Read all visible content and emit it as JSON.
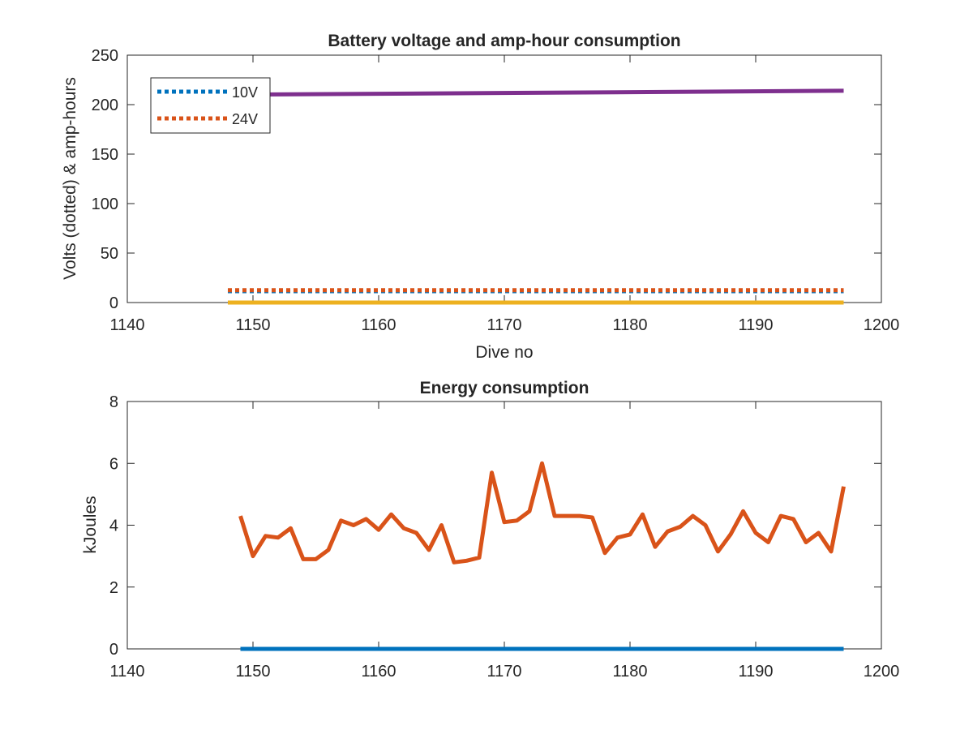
{
  "chart_data": [
    {
      "type": "line",
      "title": "Battery voltage and amp-hour consumption",
      "xlabel": "Dive no",
      "ylabel": "Volts (dotted) & amp-hours",
      "xlim": [
        1140,
        1200
      ],
      "ylim": [
        0,
        250
      ],
      "xticks": [
        1140,
        1150,
        1160,
        1170,
        1180,
        1190,
        1200
      ],
      "yticks": [
        0,
        50,
        100,
        150,
        200,
        250
      ],
      "legend": {
        "placement": "top-left",
        "entries": [
          "10V",
          "24V"
        ]
      },
      "series": [
        {
          "name": "10V",
          "color": "#0072BD",
          "style": "dotted",
          "x": [
            1148,
            1197
          ],
          "y": [
            11.5,
            11.5
          ]
        },
        {
          "name": "24V",
          "color": "#D95319",
          "style": "dotted",
          "x": [
            1148,
            1197
          ],
          "y": [
            12.5,
            12.5
          ]
        },
        {
          "color": "#EDB120",
          "style": "solid",
          "x": [
            1148,
            1197
          ],
          "y": [
            0,
            0
          ]
        },
        {
          "color": "#7E2F8E",
          "style": "solid",
          "x": [
            1148,
            1197
          ],
          "y": [
            210,
            214
          ]
        }
      ]
    },
    {
      "type": "line",
      "title": "Energy consumption",
      "xlabel": "",
      "ylabel": "kJoules",
      "xlim": [
        1140,
        1200
      ],
      "ylim": [
        0,
        8
      ],
      "xticks": [
        1140,
        1150,
        1160,
        1170,
        1180,
        1190,
        1200
      ],
      "yticks": [
        0,
        2,
        4,
        6,
        8
      ],
      "series": [
        {
          "color": "#0072BD",
          "style": "solid",
          "x": [
            1149,
            1197
          ],
          "y": [
            0,
            0
          ]
        },
        {
          "color": "#D95319",
          "style": "solid",
          "x": [
            1149,
            1150,
            1151,
            1152,
            1153,
            1154,
            1155,
            1156,
            1157,
            1158,
            1159,
            1160,
            1161,
            1162,
            1163,
            1164,
            1165,
            1166,
            1167,
            1168,
            1169,
            1170,
            1171,
            1172,
            1173,
            1174,
            1175,
            1176,
            1177,
            1178,
            1179,
            1180,
            1181,
            1182,
            1183,
            1184,
            1185,
            1186,
            1187,
            1188,
            1189,
            1190,
            1191,
            1192,
            1193,
            1194,
            1195,
            1196,
            1197
          ],
          "y": [
            4.3,
            3.0,
            3.65,
            3.6,
            3.9,
            2.9,
            2.9,
            3.2,
            4.15,
            4.0,
            4.2,
            3.85,
            4.35,
            3.9,
            3.75,
            3.2,
            4.0,
            2.8,
            2.85,
            2.95,
            5.7,
            4.1,
            4.15,
            4.45,
            6.0,
            4.3,
            4.3,
            4.3,
            4.25,
            3.1,
            3.6,
            3.7,
            4.35,
            3.3,
            3.8,
            3.95,
            4.3,
            4.0,
            3.15,
            3.7,
            4.45,
            3.75,
            3.45,
            4.3,
            4.2,
            3.45,
            3.75,
            3.15,
            5.25
          ]
        }
      ]
    }
  ]
}
